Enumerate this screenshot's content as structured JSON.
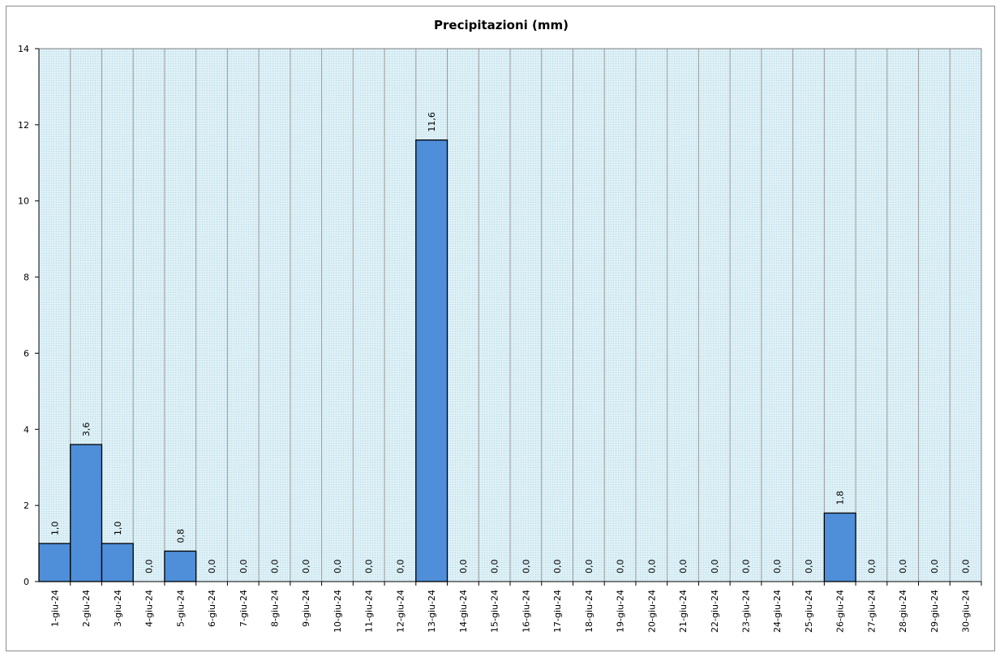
{
  "chart_data": {
    "type": "bar",
    "title": "Precipitazioni  (mm)",
    "xlabel": "",
    "ylabel": "",
    "ylim": [
      0,
      14
    ],
    "yticks": [
      0,
      2,
      4,
      6,
      8,
      10,
      12,
      14
    ],
    "grid": true,
    "legend": "none",
    "bar_color": "#4f8ed8",
    "plot_background": "#d9eff5",
    "categories": [
      "1-giu-24",
      "2-giu-24",
      "3-giu-24",
      "4-giu-24",
      "5-giu-24",
      "6-giu-24",
      "7-giu-24",
      "8-giu-24",
      "9-giu-24",
      "10-giu-24",
      "11-giu-24",
      "12-giu-24",
      "13-giu-24",
      "14-giu-24",
      "15-giu-24",
      "16-giu-24",
      "17-giu-24",
      "18-giu-24",
      "19-giu-24",
      "20-giu-24",
      "21-giu-24",
      "22-giu-24",
      "23-giu-24",
      "24-giu-24",
      "25-giu-24",
      "26-giu-24",
      "27-giu-24",
      "28-giu-24",
      "29-giu-24",
      "30-giu-24"
    ],
    "values": [
      1.0,
      3.6,
      1.0,
      0.0,
      0.8,
      0.0,
      0.0,
      0.0,
      0.0,
      0.0,
      0.0,
      0.0,
      11.6,
      0.0,
      0.0,
      0.0,
      0.0,
      0.0,
      0.0,
      0.0,
      0.0,
      0.0,
      0.0,
      0.0,
      0.0,
      1.8,
      0.0,
      0.0,
      0.0,
      0.0
    ],
    "data_labels": [
      "1,0",
      "3,6",
      "1,0",
      "0,0",
      "0,8",
      "0,0",
      "0,0",
      "0,0",
      "0,0",
      "0,0",
      "0,0",
      "0,0",
      "11,6",
      "0,0",
      "0,0",
      "0,0",
      "0,0",
      "0,0",
      "0,0",
      "0,0",
      "0,0",
      "0,0",
      "0,0",
      "0,0",
      "0,0",
      "1,8",
      "0,0",
      "0,0",
      "0,0",
      "0,0"
    ]
  }
}
